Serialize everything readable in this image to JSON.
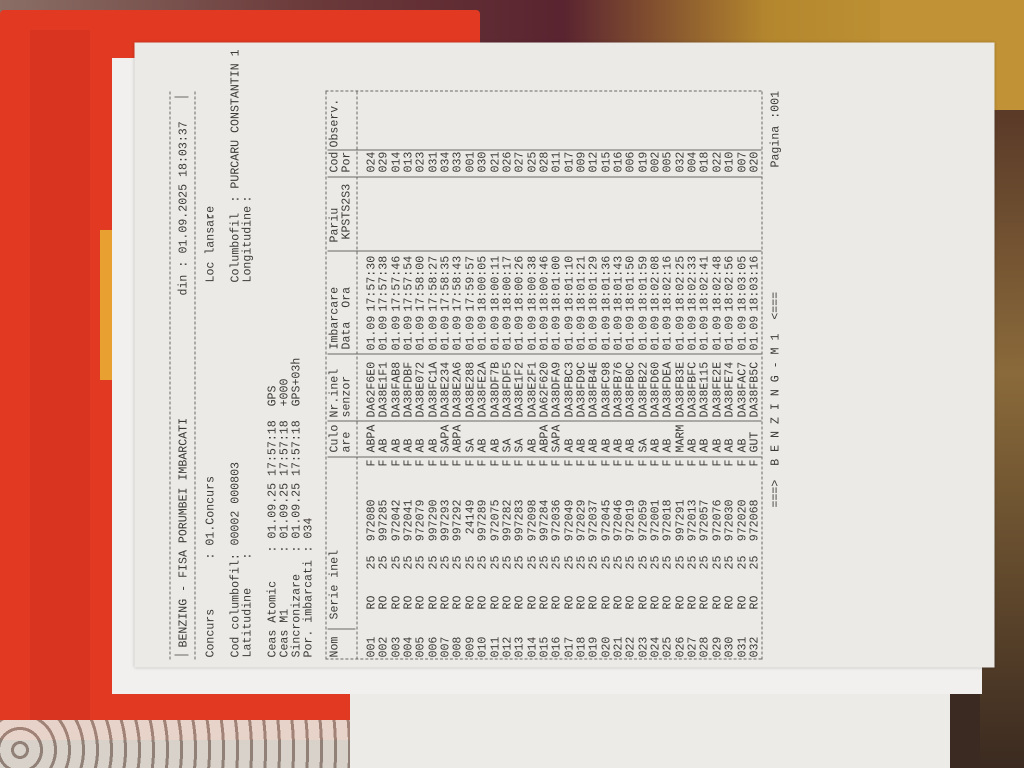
{
  "document": {
    "title": "BENZING - FISA PORUMBEI IMBARCATI",
    "din_label": "din :",
    "din_value": "01.09.2025 18:03:37",
    "concurs_label": "Concurs",
    "concurs_value": ": 01.Concurs",
    "loc_lansare_label": "Loc lansare",
    "loc_lansare_value": ":",
    "cod_columbofil_label": "Cod columbofil:",
    "cod_columbofil_value": "00002 000803",
    "columbofil_label": "Columbofil",
    "columbofil_value": ": PURCARU CONSTANTIN 1",
    "latitudine_label": "Latitudine",
    "latitudine_value": ":",
    "longitudine_label": "Longitudine",
    "longitudine_value": ":",
    "ceas_atomic_label": "Ceas Atomic",
    "ceas_atomic_value": ": 01.09.25 17:57:18  GPS",
    "ceas_m1_label": "Ceas M1",
    "ceas_m1_value": ": 01.09.25 17:57:18  +000",
    "sincronizare_label": "Sincronizare",
    "sincronizare_value": ": 01.09.25 17:57:18  GPS+03h",
    "por_imbarcati_label": "Por. imbarcati",
    "por_imbarcati_value": ": 034"
  },
  "table": {
    "headers": {
      "nom": "Nom",
      "serie": "Serie inel",
      "culo1": "Culo",
      "culo2": "are",
      "nrinel1": "Nr.inel",
      "nrinel2": "senzor",
      "imb1": "Imbarcare",
      "imb2": "Data  Ora",
      "pariu1": "Pariu",
      "pariu2": "KPSTS2S3",
      "cod1": "Cod",
      "cod2": "Por",
      "obs": "Observ."
    },
    "rows": [
      {
        "nr": "001",
        "tara": "RO",
        "an": "25",
        "inel": "972080",
        "sex": "F",
        "culoare": "ABPA",
        "senzor": "DA62F6E0",
        "data": "01.09",
        "ora": "17:57:30",
        "pariu": "",
        "cod": "024",
        "obs": ""
      },
      {
        "nr": "002",
        "tara": "RO",
        "an": "25",
        "inel": "997285",
        "sex": "F",
        "culoare": "AB",
        "senzor": "DA38E1F1",
        "data": "01.09",
        "ora": "17:57:38",
        "pariu": "",
        "cod": "029",
        "obs": ""
      },
      {
        "nr": "003",
        "tara": "RO",
        "an": "25",
        "inel": "972042",
        "sex": "F",
        "culoare": "AB",
        "senzor": "DA38FAB8",
        "data": "01.09",
        "ora": "17:57:46",
        "pariu": "",
        "cod": "014",
        "obs": ""
      },
      {
        "nr": "004",
        "tara": "RO",
        "an": "25",
        "inel": "972041",
        "sex": "F",
        "culoare": "AB",
        "senzor": "DA38FDBF",
        "data": "01.09",
        "ora": "17:57:54",
        "pariu": "",
        "cod": "013",
        "obs": ""
      },
      {
        "nr": "005",
        "tara": "RO",
        "an": "25",
        "inel": "972079",
        "sex": "F",
        "culoare": "AB",
        "senzor": "DA38E072",
        "data": "01.09",
        "ora": "17:58:00",
        "pariu": "",
        "cod": "023",
        "obs": ""
      },
      {
        "nr": "006",
        "tara": "RO",
        "an": "25",
        "inel": "997290",
        "sex": "F",
        "culoare": "AB",
        "senzor": "DA38FC1A",
        "data": "01.09",
        "ora": "17:58:27",
        "pariu": "",
        "cod": "031",
        "obs": ""
      },
      {
        "nr": "007",
        "tara": "RO",
        "an": "25",
        "inel": "997293",
        "sex": "F",
        "culoare": "SAPA",
        "senzor": "DA38E234",
        "data": "01.09",
        "ora": "17:58:35",
        "pariu": "",
        "cod": "034",
        "obs": ""
      },
      {
        "nr": "008",
        "tara": "RO",
        "an": "25",
        "inel": "997292",
        "sex": "F",
        "culoare": "ABPA",
        "senzor": "DA38E2A6",
        "data": "01.09",
        "ora": "17:58:43",
        "pariu": "",
        "cod": "033",
        "obs": ""
      },
      {
        "nr": "009",
        "tara": "RO",
        "an": "25",
        "inel": "24149",
        "sex": "F",
        "culoare": "SA",
        "senzor": "DA38E288",
        "data": "01.09",
        "ora": "17:59:57",
        "pariu": "",
        "cod": "001",
        "obs": ""
      },
      {
        "nr": "010",
        "tara": "RO",
        "an": "25",
        "inel": "997289",
        "sex": "F",
        "culoare": "AB",
        "senzor": "DA38FE2A",
        "data": "01.09",
        "ora": "18:00:05",
        "pariu": "",
        "cod": "030",
        "obs": ""
      },
      {
        "nr": "011",
        "tara": "RO",
        "an": "25",
        "inel": "972075",
        "sex": "F",
        "culoare": "AB",
        "senzor": "DA38DF7B",
        "data": "01.09",
        "ora": "18:00:11",
        "pariu": "",
        "cod": "021",
        "obs": ""
      },
      {
        "nr": "012",
        "tara": "RO",
        "an": "25",
        "inel": "997282",
        "sex": "F",
        "culoare": "SA",
        "senzor": "DA38FDF5",
        "data": "01.09",
        "ora": "18:00:17",
        "pariu": "",
        "cod": "026",
        "obs": ""
      },
      {
        "nr": "013",
        "tara": "RO",
        "an": "25",
        "inel": "997283",
        "sex": "F",
        "culoare": "SA",
        "senzor": "DA38E1F2",
        "data": "01.09",
        "ora": "18:00:26",
        "pariu": "",
        "cod": "027",
        "obs": ""
      },
      {
        "nr": "014",
        "tara": "RO",
        "an": "25",
        "inel": "972098",
        "sex": "F",
        "culoare": "AB",
        "senzor": "DA38E2F1",
        "data": "01.09",
        "ora": "18:00:38",
        "pariu": "",
        "cod": "025",
        "obs": ""
      },
      {
        "nr": "015",
        "tara": "RO",
        "an": "25",
        "inel": "997284",
        "sex": "F",
        "culoare": "ABPA",
        "senzor": "DA62F620",
        "data": "01.09",
        "ora": "18:00:46",
        "pariu": "",
        "cod": "028",
        "obs": ""
      },
      {
        "nr": "016",
        "tara": "RO",
        "an": "25",
        "inel": "972036",
        "sex": "F",
        "culoare": "SAPA",
        "senzor": "DA38DFA9",
        "data": "01.09",
        "ora": "18:01:00",
        "pariu": "",
        "cod": "011",
        "obs": ""
      },
      {
        "nr": "017",
        "tara": "RO",
        "an": "25",
        "inel": "972049",
        "sex": "F",
        "culoare": "AB",
        "senzor": "DA38FBC3",
        "data": "01.09",
        "ora": "18:01:10",
        "pariu": "",
        "cod": "017",
        "obs": ""
      },
      {
        "nr": "018",
        "tara": "RO",
        "an": "25",
        "inel": "972029",
        "sex": "F",
        "culoare": "AB",
        "senzor": "DA38FD9C",
        "data": "01.09",
        "ora": "18:01:21",
        "pariu": "",
        "cod": "009",
        "obs": ""
      },
      {
        "nr": "019",
        "tara": "RO",
        "an": "25",
        "inel": "972037",
        "sex": "F",
        "culoare": "AB",
        "senzor": "DA38FB4E",
        "data": "01.09",
        "ora": "18:01:29",
        "pariu": "",
        "cod": "012",
        "obs": ""
      },
      {
        "nr": "020",
        "tara": "RO",
        "an": "25",
        "inel": "972045",
        "sex": "F",
        "culoare": "AB",
        "senzor": "DA38FC98",
        "data": "01.09",
        "ora": "18:01:36",
        "pariu": "",
        "cod": "015",
        "obs": ""
      },
      {
        "nr": "021",
        "tara": "RO",
        "an": "25",
        "inel": "972046",
        "sex": "F",
        "culoare": "AB",
        "senzor": "DA38FB76",
        "data": "01.09",
        "ora": "18:01:43",
        "pariu": "",
        "cod": "016",
        "obs": ""
      },
      {
        "nr": "022",
        "tara": "RO",
        "an": "25",
        "inel": "972019",
        "sex": "F",
        "culoare": "AB",
        "senzor": "DA38FB0C",
        "data": "01.09",
        "ora": "18:01:50",
        "pariu": "",
        "cod": "006",
        "obs": ""
      },
      {
        "nr": "023",
        "tara": "RO",
        "an": "25",
        "inel": "972059",
        "sex": "F",
        "culoare": "SA",
        "senzor": "DA38FB22",
        "data": "01.09",
        "ora": "18:01:59",
        "pariu": "",
        "cod": "019",
        "obs": ""
      },
      {
        "nr": "024",
        "tara": "RO",
        "an": "25",
        "inel": "972001",
        "sex": "F",
        "culoare": "AB",
        "senzor": "DA38FD60",
        "data": "01.09",
        "ora": "18:02:08",
        "pariu": "",
        "cod": "002",
        "obs": ""
      },
      {
        "nr": "025",
        "tara": "RO",
        "an": "25",
        "inel": "972018",
        "sex": "F",
        "culoare": "AB",
        "senzor": "DA38FDEA",
        "data": "01.09",
        "ora": "18:02:16",
        "pariu": "",
        "cod": "005",
        "obs": ""
      },
      {
        "nr": "026",
        "tara": "RO",
        "an": "25",
        "inel": "997291",
        "sex": "F",
        "culoare": "MARM",
        "senzor": "DA38FB3E",
        "data": "01.09",
        "ora": "18:02:25",
        "pariu": "",
        "cod": "032",
        "obs": ""
      },
      {
        "nr": "027",
        "tara": "RO",
        "an": "25",
        "inel": "972013",
        "sex": "F",
        "culoare": "AB",
        "senzor": "DA38FBFC",
        "data": "01.09",
        "ora": "18:02:33",
        "pariu": "",
        "cod": "004",
        "obs": ""
      },
      {
        "nr": "028",
        "tara": "RO",
        "an": "25",
        "inel": "972057",
        "sex": "F",
        "culoare": "AB",
        "senzor": "DA38E115",
        "data": "01.09",
        "ora": "18:02:41",
        "pariu": "",
        "cod": "018",
        "obs": ""
      },
      {
        "nr": "029",
        "tara": "RO",
        "an": "25",
        "inel": "972076",
        "sex": "F",
        "culoare": "AB",
        "senzor": "DA38FE2E",
        "data": "01.09",
        "ora": "18:02:48",
        "pariu": "",
        "cod": "022",
        "obs": ""
      },
      {
        "nr": "030",
        "tara": "RO",
        "an": "25",
        "inel": "972030",
        "sex": "F",
        "culoare": "AB",
        "senzor": "DA38FE74",
        "data": "01.09",
        "ora": "18:02:56",
        "pariu": "",
        "cod": "010",
        "obs": ""
      },
      {
        "nr": "031",
        "tara": "RO",
        "an": "25",
        "inel": "972020",
        "sex": "F",
        "culoare": "AB",
        "senzor": "DA38FAC7",
        "data": "01.09",
        "ora": "18:03:05",
        "pariu": "",
        "cod": "007",
        "obs": ""
      },
      {
        "nr": "032",
        "tara": "RO",
        "an": "25",
        "inel": "972068",
        "sex": "F",
        "culoare": "GUT",
        "senzor": "DA38FB5C",
        "data": "01.09",
        "ora": "18:03:16",
        "pariu": "",
        "cod": "020",
        "obs": ""
      }
    ]
  },
  "footer": {
    "banner": "===>  B E N Z I N G - M 1  <===",
    "page": "Pagina :001"
  }
}
